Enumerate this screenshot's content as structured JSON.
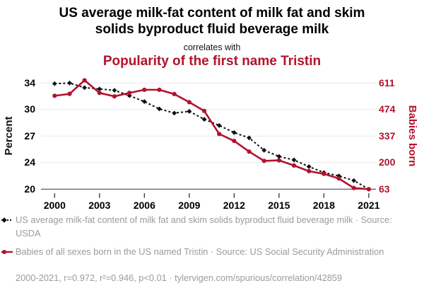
{
  "header": {
    "title": "US average milk-fat content of milk fat and skim solids byproduct fluid beverage milk",
    "correlates_with": "correlates with",
    "subtitle": "Popularity of the first name Tristin"
  },
  "colors": {
    "accent_red": "#b2132d",
    "series_black": "#111111",
    "legend_gray": "#9b9b9b",
    "gridline": "#e9e9e9",
    "axis_dark": "#333333"
  },
  "chart_data": {
    "type": "line",
    "x": [
      2000,
      2001,
      2002,
      2003,
      2004,
      2005,
      2006,
      2007,
      2008,
      2009,
      2010,
      2011,
      2012,
      2013,
      2014,
      2015,
      2016,
      2017,
      2018,
      2019,
      2020,
      2021
    ],
    "series": [
      {
        "name": "US average milk-fat content of milk fat and skim solids byproduct fluid beverage milk",
        "axis": "left",
        "color": "#111111",
        "line_style": "dashed",
        "marker": "diamond",
        "values": [
          33.9,
          34.0,
          33.3,
          33.1,
          32.9,
          32.1,
          31.2,
          30.1,
          29.6,
          29.8,
          28.9,
          28.2,
          27.4,
          26.8,
          25.4,
          24.7,
          24.3,
          23.4,
          22.5,
          22.0,
          21.3,
          20.0
        ]
      },
      {
        "name": "Babies of all sexes born in the US named Tristin",
        "axis": "right",
        "color": "#b2132d",
        "line_style": "solid",
        "marker": "circle",
        "values": [
          545,
          555,
          625,
          560,
          542,
          560,
          576,
          576,
          554,
          512,
          467,
          348,
          312,
          257,
          209,
          212,
          185,
          156,
          142,
          118,
          69,
          63
        ]
      }
    ],
    "left_axis": {
      "label": "Percent",
      "ticks": [
        34,
        30,
        27,
        24,
        20
      ]
    },
    "right_axis": {
      "label": "Babies born",
      "ticks": [
        611,
        474,
        337,
        200,
        63
      ]
    },
    "x_axis": {
      "ticks": [
        2000,
        2003,
        2006,
        2009,
        2012,
        2015,
        2018,
        2021
      ]
    },
    "grid": true,
    "legend_position": "bottom"
  },
  "legend": {
    "entries": [
      {
        "text": "US average milk-fat content of milk fat and skim solids byproduct fluid beverage milk · Source: USDA"
      },
      {
        "text": "Babies of all sexes born in the US named Tristin · Source: US Social Security Administration"
      }
    ],
    "footer": "2000-2021, r=0.972, r²=0.946, p<0.01 · tylervigen.com/spurious/correlation/42859"
  }
}
